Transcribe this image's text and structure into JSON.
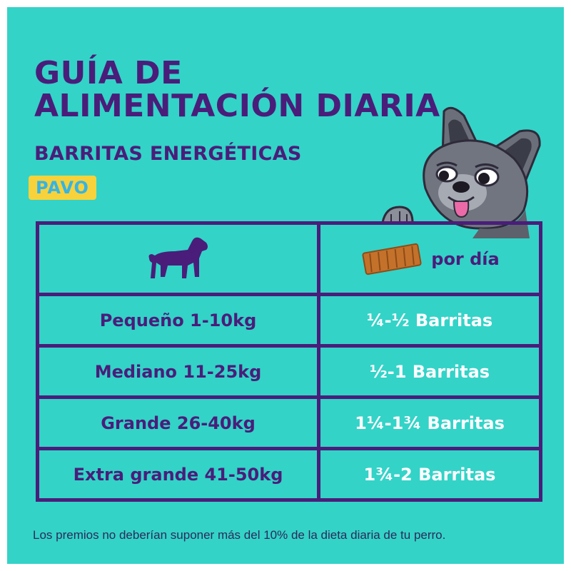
{
  "header": {
    "title": "GUÍA DE ALIMENTACIÓN DIARIA",
    "subtitle": "BARRITAS ENERGÉTICAS",
    "flavor_badge": "PAVO"
  },
  "table": {
    "header_right_label": "por día",
    "rows": [
      {
        "size": "Pequeño 1-10kg",
        "amount": "¼-½ Barritas"
      },
      {
        "size": "Mediano 11-25kg",
        "amount": "½-1 Barritas"
      },
      {
        "size": "Grande 26-40kg",
        "amount": "1¼-1¾ Barritas"
      },
      {
        "size": "Extra grande 41-50kg",
        "amount": "1¾-2 Barritas"
      }
    ]
  },
  "footnote": "Los premios no deberían suponer más del 10% de la dieta diaria de tu perro.",
  "colors": {
    "background": "#33d3c8",
    "primary_purple": "#4a1d7a",
    "badge_yellow": "#f7d23a",
    "badge_text_blue": "#36b4e4",
    "table_value_text": "#ffffff"
  },
  "icons": [
    "dog-silhouette-icon",
    "energy-bar-icon",
    "french-bulldog-illustration"
  ]
}
